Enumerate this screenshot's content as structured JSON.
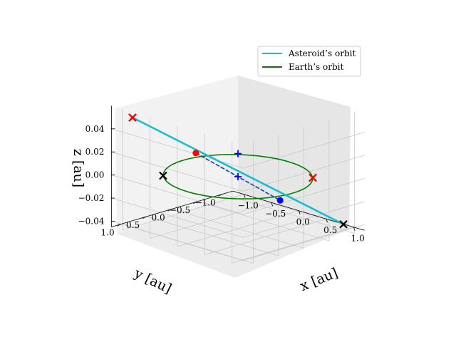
{
  "chart_data": {
    "type": "line",
    "projection": "3d",
    "xlabel": "x [au]",
    "ylabel": "y [au]",
    "zlabel": "z [au]",
    "x_ticks": [
      "−1.0",
      "−0.5",
      "0.0",
      "0.5",
      "1.0"
    ],
    "y_ticks": [
      "1.0",
      "0.5",
      "0.0",
      "−0.5",
      "−1.0"
    ],
    "z_ticks": [
      "0.04",
      "0.02",
      "0.00",
      "−0.02",
      "−0.04"
    ],
    "xlim": [
      -1.2,
      1.2
    ],
    "ylim": [
      -1.2,
      1.2
    ],
    "zlim": [
      -0.045,
      0.06
    ],
    "grid": true,
    "legend_position": "upper-right",
    "series": [
      {
        "name": "Asteroid’s orbit",
        "color": "#17becf",
        "description_points": [
          [
            -1.0,
            1.0,
            0.05
          ],
          [
            1.0,
            -1.0,
            -0.04
          ]
        ]
      },
      {
        "name": "Earth’s orbit",
        "color": "#008000",
        "radius_au": 1.0,
        "z": 0.0
      }
    ],
    "markers": [
      {
        "type": "x",
        "color": "#000000",
        "point": [
          -1.0,
          1.0,
          0.05
        ]
      },
      {
        "type": "x",
        "color": "#ff0000",
        "point": [
          -1.0,
          1.0,
          0.05
        ]
      },
      {
        "type": "x",
        "color": "#000000",
        "point": [
          1.0,
          -1.0,
          -0.04
        ]
      },
      {
        "type": "x",
        "color": "#000000",
        "point": [
          -0.71,
          0.71,
          0.0
        ]
      },
      {
        "type": "x",
        "color": "#000000",
        "point": [
          0.71,
          -0.71,
          0.0
        ]
      },
      {
        "type": "x",
        "color": "#ff0000",
        "point": [
          0.71,
          -0.71,
          0.0
        ]
      },
      {
        "type": "dot",
        "color": "#ff0000",
        "point": [
          -0.4,
          0.4,
          0.02
        ]
      },
      {
        "type": "dot",
        "color": "#0000ff",
        "point": [
          0.4,
          -0.4,
          -0.02
        ]
      },
      {
        "type": "plus",
        "color": "#0000ff",
        "point": [
          0.0,
          0.0,
          0.02
        ]
      },
      {
        "type": "plus",
        "color": "#0000ff",
        "point": [
          0.0,
          0.0,
          0.0
        ]
      }
    ]
  }
}
